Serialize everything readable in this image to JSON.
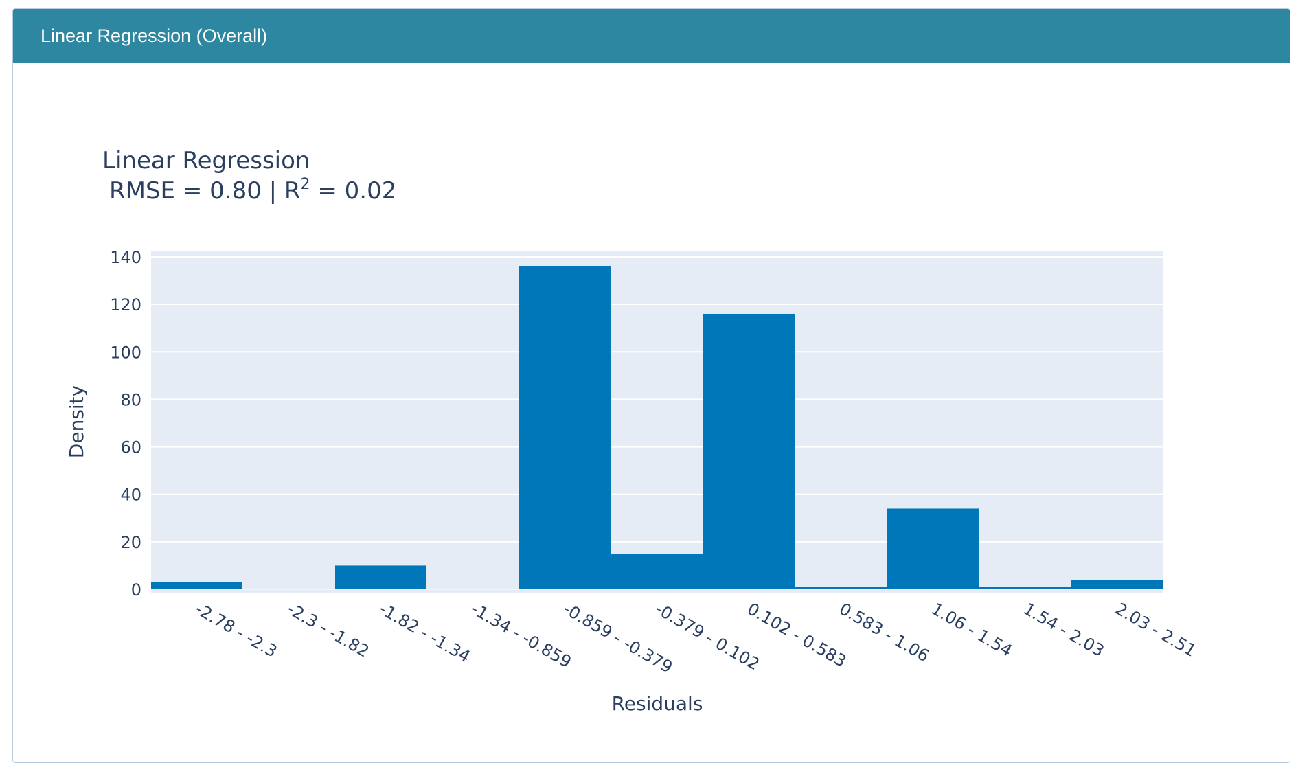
{
  "header": {
    "title": "Linear Regression (Overall)"
  },
  "colors": {
    "header_bg": "#2e87a0",
    "plot_bg": "#e5ecf6",
    "bar": "#0077b9",
    "text": "#2a3f5f"
  },
  "chart_data": {
    "type": "bar",
    "title": "Linear Regression",
    "subtitle_prefix": "RMSE = 0.80 | R",
    "subtitle_sup": "2",
    "subtitle_suffix": " = 0.02",
    "xlabel": "Residuals",
    "ylabel": "Density",
    "ylim": [
      0,
      140
    ],
    "yticks": [
      0,
      20,
      40,
      60,
      80,
      100,
      120,
      140
    ],
    "categories": [
      "-2.78 - -2.3",
      "-2.3 - -1.82",
      "-1.82 - -1.34",
      "-1.34 - -0.859",
      "-0.859 - -0.379",
      "-0.379 - 0.102",
      "0.102 - 0.583",
      "0.583 - 1.06",
      "1.06 - 1.54",
      "1.54 - 2.03",
      "2.03 - 2.51"
    ],
    "values": [
      3,
      0,
      10,
      0,
      136,
      15,
      116,
      1,
      34,
      1,
      4
    ],
    "grid": true,
    "legend": "none"
  }
}
